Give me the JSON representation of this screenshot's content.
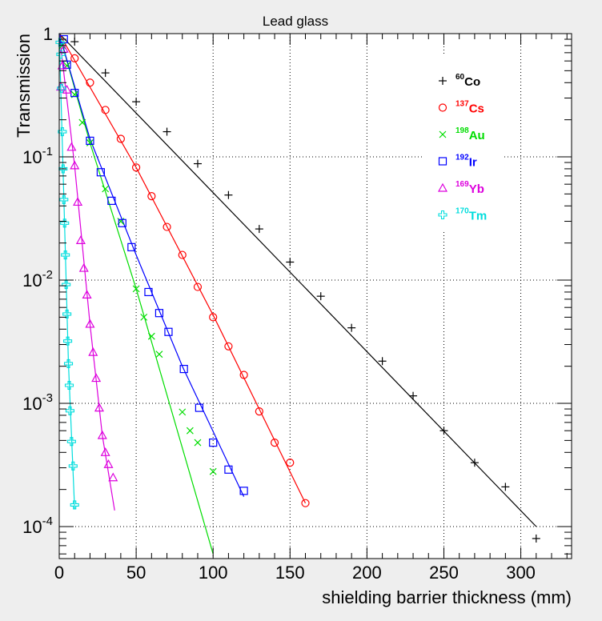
{
  "chart_data": {
    "type": "scatter",
    "title": "Lead glass",
    "xlabel": "shielding barrier thickness (mm)",
    "ylabel": "Transmission",
    "xlim": [
      0,
      333
    ],
    "ylim": [
      5.5e-05,
      1.0
    ],
    "yscale": "log",
    "grid": true,
    "legend_position": "top-right",
    "x_ticks": [
      0,
      50,
      100,
      150,
      200,
      250,
      300
    ],
    "x_tick_labels": [
      "0",
      "50",
      "100",
      "150",
      "200",
      "250",
      "300"
    ],
    "y_ticks": [
      {
        "value": 1,
        "base": "1",
        "exp": ""
      },
      {
        "value": 0.1,
        "base": "10",
        "exp": "-1"
      },
      {
        "value": 0.01,
        "base": "10",
        "exp": "-2"
      },
      {
        "value": 0.001,
        "base": "10",
        "exp": "-3"
      },
      {
        "value": 0.0001,
        "base": "10",
        "exp": "-4"
      }
    ],
    "series": [
      {
        "name": "Co",
        "mass": "60",
        "color": "#000000",
        "marker": "plus",
        "x": [
          10,
          30,
          50,
          70,
          90,
          110,
          130,
          150,
          170,
          190,
          210,
          230,
          250,
          270,
          290,
          310
        ],
        "y": [
          0.86,
          0.48,
          0.28,
          0.16,
          0.088,
          0.049,
          0.026,
          0.014,
          0.0074,
          0.0041,
          0.0022,
          0.00115,
          0.0006,
          0.00033,
          0.00021,
          8e-05
        ],
        "fit_x": [
          0,
          310
        ],
        "fit_y": [
          1.0,
          0.0001
        ]
      },
      {
        "name": "Cs",
        "mass": "137",
        "color": "#ff0000",
        "marker": "circle",
        "x": [
          10,
          20,
          30,
          40,
          50,
          60,
          70,
          80,
          90,
          100,
          110,
          120,
          130,
          140,
          150,
          160
        ],
        "y": [
          0.63,
          0.4,
          0.24,
          0.14,
          0.082,
          0.048,
          0.027,
          0.016,
          0.0088,
          0.005,
          0.0029,
          0.0017,
          0.00086,
          0.00048,
          0.00033,
          0.000155
        ],
        "fit_x": [
          0,
          50,
          100,
          160
        ],
        "fit_y": [
          1.0,
          0.082,
          0.0052,
          0.000155
        ]
      },
      {
        "name": "Au",
        "mass": "198",
        "color": "#00dd00",
        "marker": "cross",
        "x": [
          2,
          5,
          10,
          15,
          20,
          30,
          40,
          50,
          55,
          60,
          65,
          80,
          85,
          90,
          100
        ],
        "y": [
          0.8,
          0.55,
          0.32,
          0.19,
          0.13,
          0.055,
          0.03,
          0.0085,
          0.005,
          0.0035,
          0.0025,
          0.00085,
          0.0006,
          0.00048,
          0.00028
        ],
        "fit_x": [
          0,
          20,
          50,
          100
        ],
        "fit_y": [
          1.0,
          0.13,
          0.0085,
          6e-05
        ]
      },
      {
        "name": "Ir",
        "mass": "192",
        "color": "#0000ff",
        "marker": "square",
        "x": [
          3,
          5,
          10,
          20,
          27,
          34,
          41,
          47,
          58,
          65,
          71,
          81,
          91,
          100,
          110,
          120
        ],
        "y": [
          0.9,
          0.56,
          0.33,
          0.135,
          0.075,
          0.044,
          0.029,
          0.0185,
          0.008,
          0.0054,
          0.0038,
          0.0019,
          0.00092,
          0.00048,
          0.00029,
          0.000195
        ],
        "fit_x": [
          0,
          20,
          50,
          80,
          120
        ],
        "fit_y": [
          1.0,
          0.14,
          0.016,
          0.002,
          0.000175
        ]
      },
      {
        "name": "Yb",
        "mass": "169",
        "color": "#dd00dd",
        "marker": "triangle",
        "x": [
          1,
          2,
          3,
          5,
          8,
          10,
          12,
          14,
          16,
          18,
          20,
          22,
          24,
          26,
          28,
          30,
          32,
          35
        ],
        "y": [
          0.37,
          0.55,
          0.75,
          0.35,
          0.12,
          0.085,
          0.043,
          0.021,
          0.0125,
          0.0076,
          0.0044,
          0.0026,
          0.0016,
          0.00092,
          0.00055,
          0.0004,
          0.00032,
          0.00025
        ],
        "fit_x": [
          0,
          10,
          20,
          28,
          36
        ],
        "fit_y": [
          1.0,
          0.085,
          0.0044,
          0.00055,
          0.000135
        ]
      },
      {
        "name": "Tm",
        "mass": "170",
        "color": "#00dddd",
        "marker": "star",
        "x": [
          0.5,
          1,
          1.5,
          2,
          2.5,
          3,
          3.5,
          4,
          4.5,
          5,
          5.5,
          6,
          6.5,
          7,
          8,
          9,
          10
        ],
        "y": [
          0.85,
          0.68,
          0.36,
          0.16,
          0.08,
          0.045,
          0.029,
          0.016,
          0.0092,
          0.0053,
          0.0032,
          0.0021,
          0.0014,
          0.00087,
          0.00049,
          0.00031,
          0.00015
        ],
        "fit_x": [
          0,
          3,
          6,
          10
        ],
        "fit_y": [
          1.0,
          0.045,
          0.0021,
          0.00014
        ]
      }
    ]
  }
}
